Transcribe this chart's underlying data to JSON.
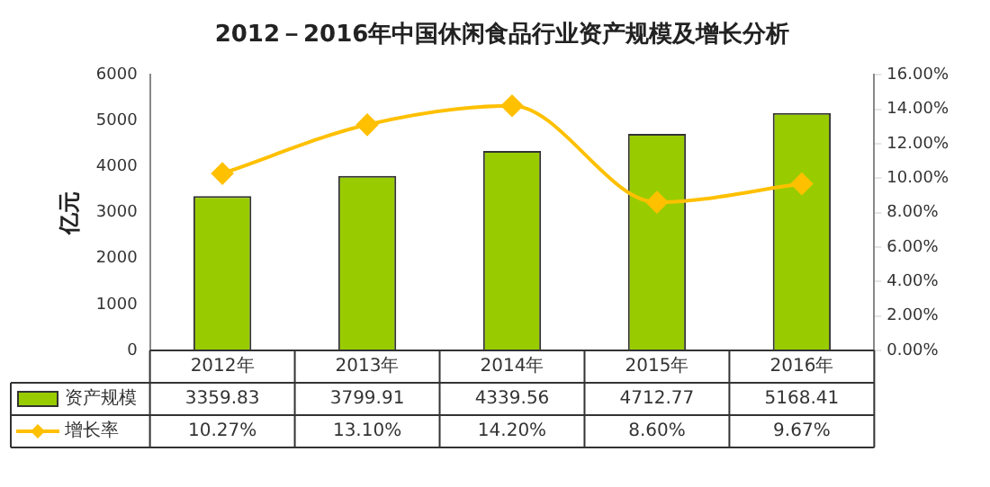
{
  "chart_data": {
    "type": "bar",
    "title": "2012－2016年中国休闲食品行业资产规模及增长分析",
    "ylabel": "亿元",
    "categories": [
      "2012年",
      "2013年",
      "2014年",
      "2015年",
      "2016年"
    ],
    "series": [
      {
        "name": "资产规模",
        "color": "#99cc00",
        "values": [
          3359.83,
          3799.91,
          4339.56,
          4712.77,
          5168.41
        ],
        "value_labels": [
          "3359.83",
          "3799.91",
          "4339.56",
          "4712.77",
          "5168.41"
        ]
      },
      {
        "name": "增长率",
        "type": "line",
        "axis": "y2",
        "color": "#ffc000",
        "values": [
          10.27,
          13.1,
          14.2,
          8.6,
          9.67
        ],
        "value_labels": [
          "10.27%",
          "13.10%",
          "14.20%",
          "8.60%",
          "9.67%"
        ]
      }
    ],
    "ylim": [
      0,
      6000
    ],
    "yticks": [
      0,
      1000,
      2000,
      3000,
      4000,
      5000,
      6000
    ],
    "y2lim": [
      0,
      16
    ],
    "y2ticks": [
      {
        "value": 0,
        "label": "0.00%"
      },
      {
        "value": 2,
        "label": "2.00%"
      },
      {
        "value": 4,
        "label": "4.00%"
      },
      {
        "value": 6,
        "label": "6.00%"
      },
      {
        "value": 8,
        "label": "8.00%"
      },
      {
        "value": 10,
        "label": "10.00%"
      },
      {
        "value": 12,
        "label": "12.00%"
      },
      {
        "value": 14,
        "label": "14.00%"
      },
      {
        "value": 16,
        "label": "16.00%"
      }
    ],
    "grid": false,
    "legend": "bottom left",
    "marker": "diamond",
    "line_style": "solid"
  }
}
